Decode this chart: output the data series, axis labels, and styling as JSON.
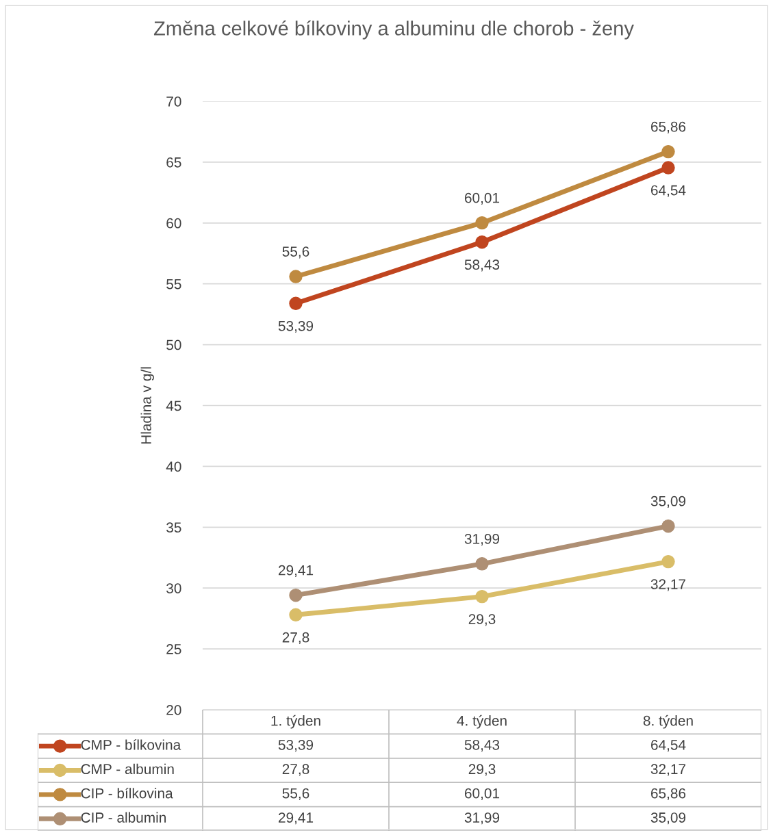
{
  "chart_data": {
    "type": "line",
    "title": "Změna celkové bílkoviny a albuminu dle chorob - ženy",
    "ylabel": "Hladina v g/l",
    "categories": [
      "1. týden",
      "4. týden",
      "8. týden"
    ],
    "series": [
      {
        "name": "CMP - bílkovina",
        "color": "#c0451f",
        "values": [
          53.39,
          58.43,
          64.54
        ],
        "value_labels": [
          "53,39",
          "58,43",
          "64,54"
        ]
      },
      {
        "name": "CMP - albumin",
        "color": "#d9bd68",
        "values": [
          27.8,
          29.3,
          32.17
        ],
        "value_labels": [
          "27,8",
          "29,3",
          "32,17"
        ]
      },
      {
        "name": "CIP - bílkovina",
        "color": "#bf8a40",
        "values": [
          55.6,
          60.01,
          65.86
        ],
        "value_labels": [
          "55,6",
          "60,01",
          "65,86"
        ]
      },
      {
        "name": "CIP - albumin",
        "color": "#ae8f74",
        "values": [
          29.41,
          31.99,
          35.09
        ],
        "value_labels": [
          "29,41",
          "31,99",
          "35,09"
        ]
      }
    ],
    "ylim": [
      20,
      70
    ],
    "yticks": [
      20,
      25,
      30,
      35,
      40,
      45,
      50,
      55,
      60,
      65,
      70
    ],
    "grid": "y",
    "legend": "bottom",
    "marker": "circle",
    "line_style": "solid"
  }
}
